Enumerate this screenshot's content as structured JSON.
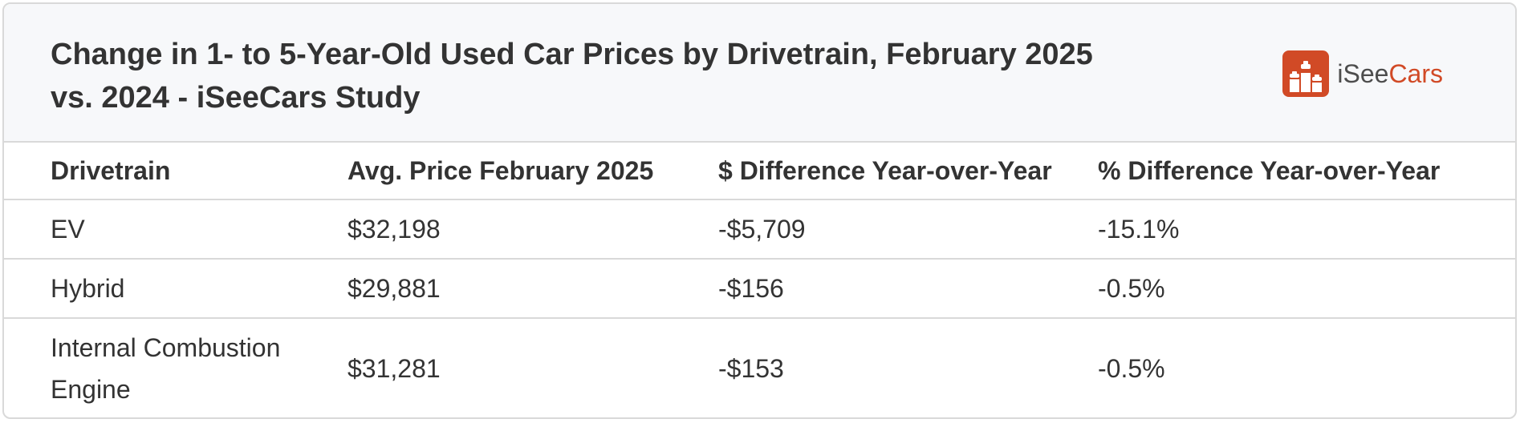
{
  "header": {
    "title": "Change in 1- to 5-Year-Old Used Car Prices by Drivetrain, February 2025 vs. 2024 - iSeeCars Study",
    "brand": {
      "prefix": "iSee",
      "suffix": "Cars",
      "icon": "podium-cars-icon",
      "accent_color": "#d14a26"
    }
  },
  "table": {
    "columns": [
      "Drivetrain",
      "Avg. Price February 2025",
      "$ Difference Year-over-Year",
      "% Difference Year-over-Year"
    ],
    "rows": [
      [
        "EV",
        "$32,198",
        "-$5,709",
        "-15.1%"
      ],
      [
        "Hybrid",
        "$29,881",
        "-$156",
        "-0.5%"
      ],
      [
        "Internal Combustion Engine",
        "$31,281",
        "-$153",
        "-0.5%"
      ]
    ]
  }
}
